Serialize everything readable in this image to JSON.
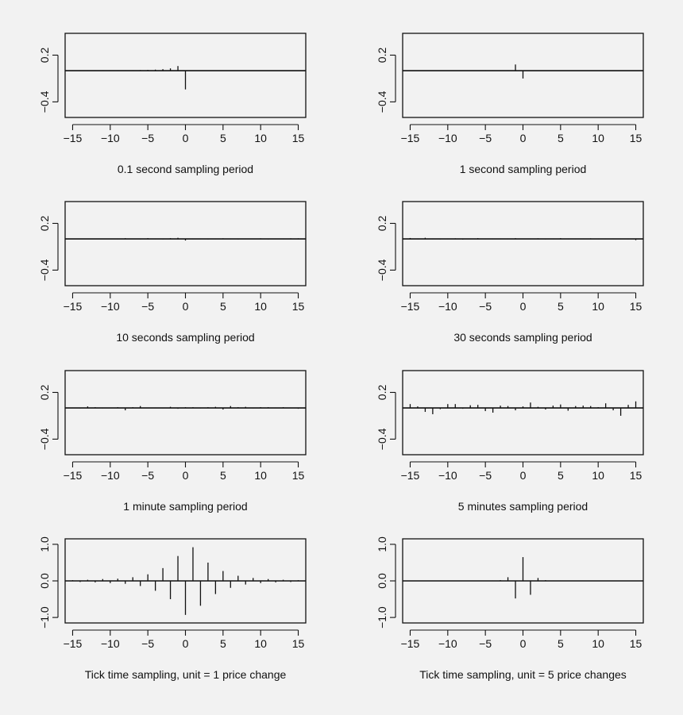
{
  "chart_data": [
    {
      "type": "bar",
      "title": "0.1 second sampling period",
      "xlim": [
        -16,
        16
      ],
      "ylim": [
        -0.6,
        0.48
      ],
      "xticks": [
        "−15",
        "−10",
        "−5",
        "0",
        "5",
        "10",
        "15"
      ],
      "yticks": [
        {
          "v": 0.2,
          "label": "0.2"
        },
        {
          "v": -0.4,
          "label": "−0.4"
        }
      ],
      "lags": [
        -15,
        -14,
        -13,
        -12,
        -11,
        -10,
        -9,
        -8,
        -7,
        -6,
        -5,
        -4,
        -3,
        -2,
        -1,
        0,
        1,
        2,
        3,
        4,
        5,
        6,
        7,
        8,
        9,
        10,
        11,
        12,
        13,
        14,
        15
      ],
      "values": [
        0.002,
        0.002,
        0.002,
        0.003,
        0.003,
        0.004,
        0.004,
        0.005,
        0.006,
        0.008,
        0.01,
        0.014,
        0.02,
        0.03,
        0.06,
        -0.24,
        0,
        0,
        0,
        0,
        0,
        0,
        0,
        0,
        0,
        0,
        0,
        0,
        0,
        0,
        0
      ]
    },
    {
      "type": "bar",
      "title": "1 second sampling period",
      "xlim": [
        -16,
        16
      ],
      "ylim": [
        -0.6,
        0.48
      ],
      "xticks": [
        "−15",
        "−10",
        "−5",
        "0",
        "5",
        "10",
        "15"
      ],
      "yticks": [
        {
          "v": 0.2,
          "label": "0.2"
        },
        {
          "v": -0.4,
          "label": "−0.4"
        }
      ],
      "lags": [
        -15,
        -14,
        -13,
        -12,
        -11,
        -10,
        -9,
        -8,
        -7,
        -6,
        -5,
        -4,
        -3,
        -2,
        -1,
        0,
        1,
        2,
        3,
        4,
        5,
        6,
        7,
        8,
        9,
        10,
        11,
        12,
        13,
        14,
        15
      ],
      "values": [
        0,
        0,
        0,
        0,
        0,
        0,
        0,
        0,
        0,
        0,
        0.002,
        0.002,
        0.003,
        0.006,
        0.08,
        -0.1,
        0,
        0,
        0,
        0,
        0,
        0,
        0,
        0,
        0,
        0,
        0,
        0,
        0,
        0,
        0
      ]
    },
    {
      "type": "bar",
      "title": "10 seconds sampling period",
      "xlim": [
        -16,
        16
      ],
      "ylim": [
        -0.6,
        0.48
      ],
      "xticks": [
        "−15",
        "−10",
        "−5",
        "0",
        "5",
        "10",
        "15"
      ],
      "yticks": [
        {
          "v": 0.2,
          "label": "0.2"
        },
        {
          "v": -0.4,
          "label": "−0.4"
        }
      ],
      "lags": [
        -15,
        -14,
        -13,
        -12,
        -11,
        -10,
        -9,
        -8,
        -7,
        -6,
        -5,
        -4,
        -3,
        -2,
        -1,
        0,
        1,
        2,
        3,
        4,
        5,
        6,
        7,
        8,
        9,
        10,
        11,
        12,
        13,
        14,
        15
      ],
      "values": [
        0,
        0,
        0,
        0,
        0,
        0,
        0.005,
        0.01,
        0.005,
        -0.005,
        0.01,
        0.005,
        -0.005,
        0.01,
        0.015,
        -0.02,
        0.005,
        0.005,
        -0.005,
        0.005,
        0.008,
        0.005,
        -0.005,
        0.005,
        0.005,
        0.008,
        -0.005,
        0.005,
        0.005,
        0.008,
        0.008
      ]
    },
    {
      "type": "bar",
      "title": "30 seconds sampling period",
      "xlim": [
        -16,
        16
      ],
      "ylim": [
        -0.6,
        0.48
      ],
      "xticks": [
        "−15",
        "−10",
        "−5",
        "0",
        "5",
        "10",
        "15"
      ],
      "yticks": [
        {
          "v": 0.2,
          "label": "0.2"
        },
        {
          "v": -0.4,
          "label": "−0.4"
        }
      ],
      "lags": [
        -15,
        -14,
        -13,
        -12,
        -11,
        -10,
        -9,
        -8,
        -7,
        -6,
        -5,
        -4,
        -3,
        -2,
        -1,
        0,
        1,
        2,
        3,
        4,
        5,
        6,
        7,
        8,
        9,
        10,
        11,
        12,
        13,
        14,
        15
      ],
      "values": [
        0.012,
        0.005,
        0.015,
        0.005,
        -0.005,
        0.005,
        0.008,
        -0.008,
        0.005,
        0.01,
        0.005,
        0.005,
        0.005,
        0.005,
        0.01,
        0.005,
        0.005,
        0.008,
        -0.005,
        0.005,
        0.01,
        0.005,
        0.005,
        0.005,
        0.008,
        0.005,
        0.005,
        0.005,
        0.005,
        0.005,
        -0.015
      ]
    },
    {
      "type": "bar",
      "title": "1 minute sampling period",
      "xlim": [
        -16,
        16
      ],
      "ylim": [
        -0.6,
        0.48
      ],
      "xticks": [
        "−15",
        "−10",
        "−5",
        "0",
        "5",
        "10",
        "15"
      ],
      "yticks": [
        {
          "v": 0.2,
          "label": "0.2"
        },
        {
          "v": -0.4,
          "label": "−0.4"
        }
      ],
      "lags": [
        -15,
        -14,
        -13,
        -12,
        -11,
        -10,
        -9,
        -8,
        -7,
        -6,
        -5,
        -4,
        -3,
        -2,
        -1,
        0,
        1,
        2,
        3,
        4,
        5,
        6,
        7,
        8,
        9,
        10,
        11,
        12,
        13,
        14,
        15
      ],
      "values": [
        0.005,
        -0.005,
        0.02,
        0.01,
        -0.005,
        0.005,
        0.01,
        -0.03,
        0.01,
        0.025,
        0.005,
        0.005,
        -0.005,
        0.015,
        -0.01,
        0.01,
        0.01,
        -0.005,
        0.01,
        0.015,
        -0.02,
        0.025,
        0.01,
        0.015,
        -0.005,
        0.01,
        0.01,
        0.005,
        0.01,
        0.005,
        -0.01
      ]
    },
    {
      "type": "bar",
      "title": "5 minutes sampling period",
      "xlim": [
        -16,
        16
      ],
      "ylim": [
        -0.6,
        0.48
      ],
      "xticks": [
        "−15",
        "−10",
        "−5",
        "0",
        "5",
        "10",
        "15"
      ],
      "yticks": [
        {
          "v": 0.2,
          "label": "0.2"
        },
        {
          "v": -0.4,
          "label": "−0.4"
        }
      ],
      "lags": [
        -15,
        -14,
        -13,
        -12,
        -11,
        -10,
        -9,
        -8,
        -7,
        -6,
        -5,
        -4,
        -3,
        -2,
        -1,
        0,
        1,
        2,
        3,
        4,
        5,
        6,
        7,
        8,
        9,
        10,
        11,
        12,
        13,
        14,
        15
      ],
      "values": [
        0.05,
        0.02,
        -0.05,
        -0.08,
        -0.015,
        0.05,
        0.05,
        -0.01,
        0.035,
        0.04,
        -0.04,
        -0.06,
        0.03,
        0.025,
        -0.03,
        0.02,
        0.07,
        0.015,
        -0.02,
        0.03,
        0.045,
        -0.035,
        0.025,
        0.03,
        0.025,
        0.01,
        0.06,
        -0.03,
        -0.1,
        0.04,
        0.085
      ]
    },
    {
      "type": "bar",
      "title": "Tick time sampling, unit = 1 price change",
      "xlim": [
        -16,
        16
      ],
      "ylim": [
        -1.15,
        1.15
      ],
      "xticks": [
        "−15",
        "−10",
        "−5",
        "0",
        "5",
        "10",
        "15"
      ],
      "yticks": [
        {
          "v": 1.0,
          "label": "1.0"
        },
        {
          "v": 0.0,
          "label": "0.0"
        },
        {
          "v": -1.0,
          "label": "−1.0"
        }
      ],
      "lags": [
        -15,
        -14,
        -13,
        -12,
        -11,
        -10,
        -9,
        -8,
        -7,
        -6,
        -5,
        -4,
        -3,
        -2,
        -1,
        0,
        1,
        2,
        3,
        4,
        5,
        6,
        7,
        8,
        9,
        10,
        11,
        12,
        13,
        14,
        15
      ],
      "values": [
        0.02,
        -0.03,
        0.03,
        -0.04,
        0.05,
        -0.06,
        0.06,
        -0.08,
        0.1,
        -0.14,
        0.18,
        -0.27,
        0.35,
        -0.5,
        0.68,
        -0.93,
        0.92,
        -0.68,
        0.5,
        -0.36,
        0.27,
        -0.19,
        0.14,
        -0.1,
        0.08,
        -0.06,
        0.05,
        -0.04,
        0.03,
        -0.03,
        0.02
      ]
    },
    {
      "type": "bar",
      "title": "Tick time sampling, unit = 5 price changes",
      "xlim": [
        -16,
        16
      ],
      "ylim": [
        -1.15,
        1.15
      ],
      "xticks": [
        "−15",
        "−10",
        "−5",
        "0",
        "5",
        "10",
        "15"
      ],
      "yticks": [
        {
          "v": 1.0,
          "label": "1.0"
        },
        {
          "v": 0.0,
          "label": "0.0"
        },
        {
          "v": -1.0,
          "label": "−1.0"
        }
      ],
      "lags": [
        -15,
        -14,
        -13,
        -12,
        -11,
        -10,
        -9,
        -8,
        -7,
        -6,
        -5,
        -4,
        -3,
        -2,
        -1,
        0,
        1,
        2,
        3,
        4,
        5,
        6,
        7,
        8,
        9,
        10,
        11,
        12,
        13,
        14,
        15
      ],
      "values": [
        0,
        0,
        0,
        0,
        0,
        0,
        0,
        0,
        0,
        0,
        0,
        0.01,
        0.02,
        0.1,
        -0.48,
        0.65,
        -0.38,
        0.08,
        0.02,
        0.01,
        0.01,
        0,
        0,
        0,
        0,
        0,
        0,
        0,
        0,
        0,
        0
      ]
    }
  ]
}
